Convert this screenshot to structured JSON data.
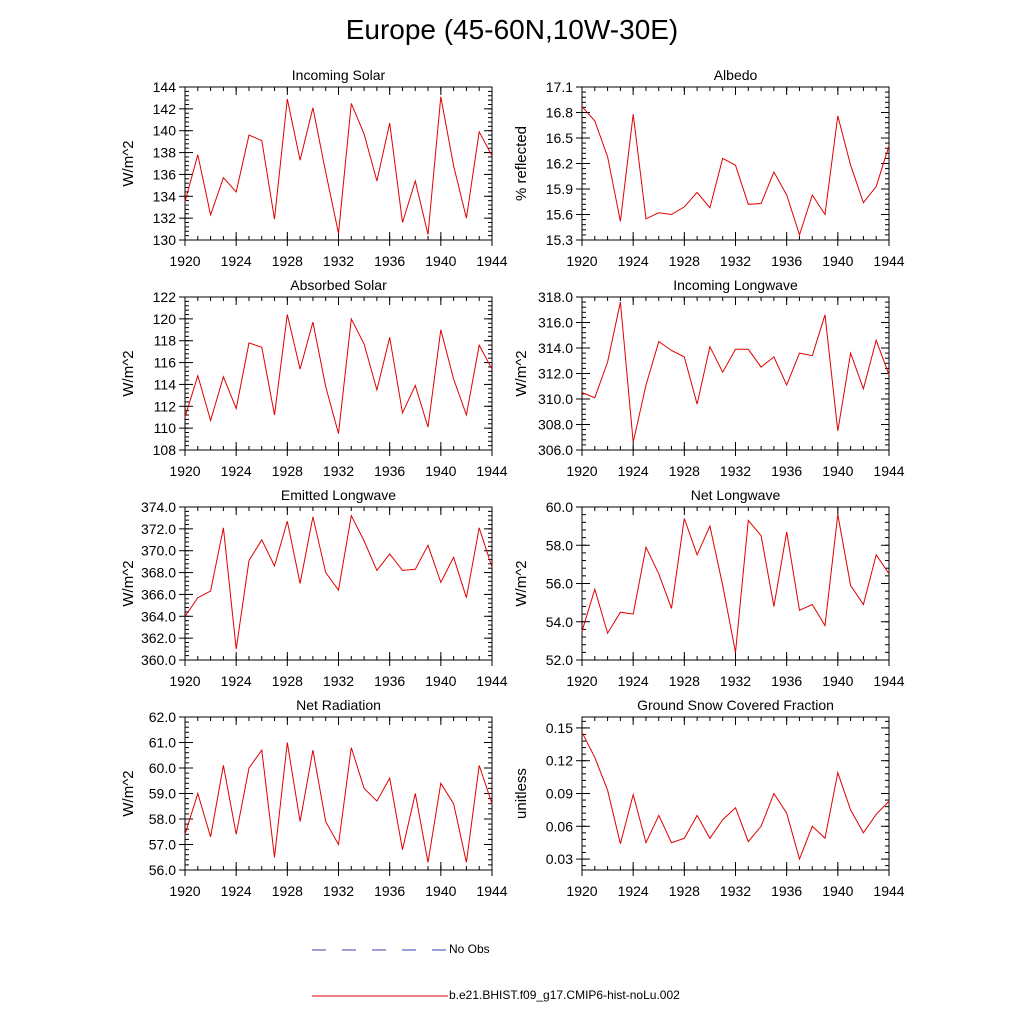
{
  "page": {
    "title": "Europe (45-60N,10W-30E)"
  },
  "legend": {
    "obs_label": "No Obs",
    "model_label": "b.e21.BHIST.f09_g17.CMIP6-hist-noLu.002",
    "obs_color": "#3f3fb0",
    "model_color": "#e00000"
  },
  "chart_data": [
    {
      "type": "line",
      "title": "Incoming Solar",
      "ylabel": "W/m^2",
      "xlim": [
        1920,
        1944
      ],
      "ylim": [
        130,
        144
      ],
      "xticks": [
        1920,
        1924,
        1928,
        1932,
        1936,
        1940,
        1944
      ],
      "yticks": [
        "130",
        "132",
        "134",
        "136",
        "138",
        "140",
        "142",
        "144"
      ],
      "x": [
        1920,
        1921,
        1922,
        1923,
        1924,
        1925,
        1926,
        1927,
        1928,
        1929,
        1930,
        1931,
        1932,
        1933,
        1934,
        1935,
        1936,
        1937,
        1938,
        1939,
        1940,
        1941,
        1942,
        1943,
        1944
      ],
      "series": [
        {
          "color": "#e00000",
          "values": [
            133.5,
            137.8,
            132.3,
            135.7,
            134.4,
            139.6,
            139.1,
            131.9,
            142.9,
            137.3,
            142.1,
            136.2,
            130.6,
            142.5,
            139.7,
            135.4,
            140.7,
            131.6,
            135.4,
            130.5,
            143.1,
            136.8,
            132.0,
            139.9,
            137.7
          ]
        }
      ]
    },
    {
      "type": "line",
      "title": "Albedo",
      "ylabel": "% reflected",
      "xlim": [
        1920,
        1944
      ],
      "ylim": [
        15.3,
        17.1
      ],
      "xticks": [
        1920,
        1924,
        1928,
        1932,
        1936,
        1940,
        1944
      ],
      "yticks": [
        "15.3",
        "15.6",
        "15.9",
        "16.2",
        "16.5",
        "16.8",
        "17.1"
      ],
      "x": [
        1920,
        1921,
        1922,
        1923,
        1924,
        1925,
        1926,
        1927,
        1928,
        1929,
        1930,
        1931,
        1932,
        1933,
        1934,
        1935,
        1936,
        1937,
        1938,
        1939,
        1940,
        1941,
        1942,
        1943,
        1944
      ],
      "series": [
        {
          "color": "#e00000",
          "values": [
            16.87,
            16.7,
            16.28,
            15.52,
            16.78,
            15.55,
            15.62,
            15.6,
            15.69,
            15.86,
            15.68,
            16.26,
            16.18,
            15.72,
            15.73,
            16.1,
            15.83,
            15.36,
            15.83,
            15.6,
            16.76,
            16.18,
            15.74,
            15.93,
            16.41
          ]
        }
      ]
    },
    {
      "type": "line",
      "title": "Absorbed Solar",
      "ylabel": "W/m^2",
      "xlim": [
        1920,
        1944
      ],
      "ylim": [
        108,
        122
      ],
      "xticks": [
        1920,
        1924,
        1928,
        1932,
        1936,
        1940,
        1944
      ],
      "yticks": [
        "108",
        "110",
        "112",
        "114",
        "116",
        "118",
        "120",
        "122"
      ],
      "x": [
        1920,
        1921,
        1922,
        1923,
        1924,
        1925,
        1926,
        1927,
        1928,
        1929,
        1930,
        1931,
        1932,
        1933,
        1934,
        1935,
        1936,
        1937,
        1938,
        1939,
        1940,
        1941,
        1942,
        1943,
        1944
      ],
      "series": [
        {
          "color": "#e00000",
          "values": [
            111.0,
            114.8,
            110.7,
            114.7,
            111.8,
            117.8,
            117.4,
            111.2,
            120.4,
            115.4,
            119.7,
            113.8,
            109.5,
            120.0,
            117.7,
            113.5,
            118.3,
            111.4,
            113.9,
            110.1,
            119.0,
            114.5,
            111.2,
            117.6,
            115.4
          ]
        }
      ]
    },
    {
      "type": "line",
      "title": "Incoming Longwave",
      "ylabel": "W/m^2",
      "xlim": [
        1920,
        1944
      ],
      "ylim": [
        306.0,
        318.0
      ],
      "xticks": [
        1920,
        1924,
        1928,
        1932,
        1936,
        1940,
        1944
      ],
      "yticks": [
        "306.0",
        "308.0",
        "310.0",
        "312.0",
        "314.0",
        "316.0",
        "318.0"
      ],
      "x": [
        1920,
        1921,
        1922,
        1923,
        1924,
        1925,
        1926,
        1927,
        1928,
        1929,
        1930,
        1931,
        1932,
        1933,
        1934,
        1935,
        1936,
        1937,
        1938,
        1939,
        1940,
        1941,
        1942,
        1943,
        1944
      ],
      "series": [
        {
          "color": "#e00000",
          "values": [
            310.5,
            310.1,
            312.9,
            317.6,
            306.6,
            311.1,
            314.5,
            313.8,
            313.3,
            309.6,
            314.1,
            312.1,
            313.9,
            313.9,
            312.5,
            313.3,
            311.1,
            313.6,
            313.4,
            316.6,
            307.5,
            313.6,
            310.8,
            314.6,
            311.9
          ]
        }
      ]
    },
    {
      "type": "line",
      "title": "Emitted Longwave",
      "ylabel": "W/m^2",
      "xlim": [
        1920,
        1944
      ],
      "ylim": [
        360.0,
        374.0
      ],
      "xticks": [
        1920,
        1924,
        1928,
        1932,
        1936,
        1940,
        1944
      ],
      "yticks": [
        "360.0",
        "362.0",
        "364.0",
        "366.0",
        "368.0",
        "370.0",
        "372.0",
        "374.0"
      ],
      "x": [
        1920,
        1921,
        1922,
        1923,
        1924,
        1925,
        1926,
        1927,
        1928,
        1929,
        1930,
        1931,
        1932,
        1933,
        1934,
        1935,
        1936,
        1937,
        1938,
        1939,
        1940,
        1941,
        1942,
        1943,
        1944
      ],
      "series": [
        {
          "color": "#e00000",
          "values": [
            364.0,
            365.7,
            366.3,
            372.1,
            361.0,
            369.1,
            371.0,
            368.6,
            372.7,
            367.0,
            373.1,
            368.0,
            366.4,
            373.2,
            370.9,
            368.2,
            369.7,
            368.2,
            368.3,
            370.5,
            367.1,
            369.4,
            365.7,
            372.1,
            368.5
          ]
        }
      ]
    },
    {
      "type": "line",
      "title": "Net Longwave",
      "ylabel": "W/m^2",
      "xlim": [
        1920,
        1944
      ],
      "ylim": [
        52.0,
        60.0
      ],
      "xticks": [
        1920,
        1924,
        1928,
        1932,
        1936,
        1940,
        1944
      ],
      "yticks": [
        "52.0",
        "54.0",
        "56.0",
        "58.0",
        "60.0"
      ],
      "x": [
        1920,
        1921,
        1922,
        1923,
        1924,
        1925,
        1926,
        1927,
        1928,
        1929,
        1930,
        1931,
        1932,
        1933,
        1934,
        1935,
        1936,
        1937,
        1938,
        1939,
        1940,
        1941,
        1942,
        1943,
        1944
      ],
      "series": [
        {
          "color": "#e00000",
          "values": [
            53.5,
            55.7,
            53.4,
            54.5,
            54.4,
            57.9,
            56.5,
            54.7,
            59.4,
            57.5,
            59.0,
            55.9,
            52.4,
            59.3,
            58.5,
            54.8,
            58.7,
            54.6,
            54.9,
            53.8,
            59.6,
            55.9,
            54.9,
            57.5,
            56.5
          ]
        }
      ]
    },
    {
      "type": "line",
      "title": "Net Radiation",
      "ylabel": "W/m^2",
      "xlim": [
        1920,
        1944
      ],
      "ylim": [
        56.0,
        62.0
      ],
      "xticks": [
        1920,
        1924,
        1928,
        1932,
        1936,
        1940,
        1944
      ],
      "yticks": [
        "56.0",
        "57.0",
        "58.0",
        "59.0",
        "60.0",
        "61.0",
        "62.0"
      ],
      "x": [
        1920,
        1921,
        1922,
        1923,
        1924,
        1925,
        1926,
        1927,
        1928,
        1929,
        1930,
        1931,
        1932,
        1933,
        1934,
        1935,
        1936,
        1937,
        1938,
        1939,
        1940,
        1941,
        1942,
        1943,
        1944
      ],
      "series": [
        {
          "color": "#e00000",
          "values": [
            57.4,
            59.0,
            57.3,
            60.1,
            57.4,
            60.0,
            60.7,
            56.5,
            61.0,
            57.9,
            60.7,
            57.9,
            57.0,
            60.8,
            59.2,
            58.7,
            59.6,
            56.8,
            59.0,
            56.3,
            59.4,
            58.6,
            56.3,
            60.1,
            58.6
          ]
        }
      ]
    },
    {
      "type": "line",
      "title": "Ground Snow Covered Fraction",
      "ylabel": "unitless",
      "xlim": [
        1920,
        1944
      ],
      "ylim": [
        0.02,
        0.16
      ],
      "xticks": [
        1920,
        1924,
        1928,
        1932,
        1936,
        1940,
        1944
      ],
      "yticks": [
        "0.03",
        "0.06",
        "0.09",
        "0.12",
        "0.15"
      ],
      "x": [
        1920,
        1921,
        1922,
        1923,
        1924,
        1925,
        1926,
        1927,
        1928,
        1929,
        1930,
        1931,
        1932,
        1933,
        1934,
        1935,
        1936,
        1937,
        1938,
        1939,
        1940,
        1941,
        1942,
        1943,
        1944
      ],
      "series": [
        {
          "color": "#e00000",
          "values": [
            0.146,
            0.123,
            0.093,
            0.044,
            0.089,
            0.045,
            0.07,
            0.045,
            0.049,
            0.07,
            0.049,
            0.066,
            0.077,
            0.046,
            0.06,
            0.09,
            0.072,
            0.03,
            0.06,
            0.049,
            0.109,
            0.075,
            0.054,
            0.071,
            0.083
          ]
        }
      ]
    }
  ]
}
